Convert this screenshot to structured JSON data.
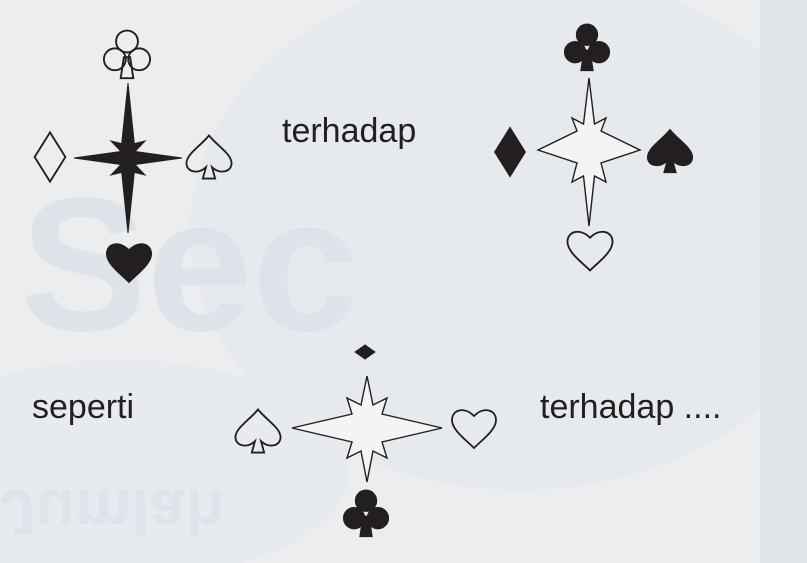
{
  "labels": {
    "first": "terhadap",
    "second": "seperti",
    "third": "terhadap ...."
  },
  "figures": [
    {
      "name": "figure-1",
      "star": "filled",
      "top": {
        "suit": "club",
        "fill": "outline"
      },
      "left": {
        "suit": "diamond",
        "fill": "outline"
      },
      "right": {
        "suit": "spade",
        "fill": "outline"
      },
      "bottom": {
        "suit": "heart",
        "fill": "filled"
      }
    },
    {
      "name": "figure-2",
      "star": "outline",
      "top": {
        "suit": "club",
        "fill": "filled"
      },
      "left": {
        "suit": "diamond",
        "fill": "filled"
      },
      "right": {
        "suit": "spade",
        "fill": "filled"
      },
      "bottom": {
        "suit": "heart",
        "fill": "outline"
      }
    },
    {
      "name": "figure-3",
      "star": "outline",
      "top": {
        "suit": "diamond",
        "fill": "filled"
      },
      "left": {
        "suit": "spade",
        "fill": "outline"
      },
      "right": {
        "suit": "heart",
        "fill": "outline"
      },
      "bottom": {
        "suit": "club",
        "fill": "filled"
      }
    }
  ],
  "colors": {
    "ink": "#231f20",
    "paper": "#ecedee",
    "watermark": "#dfe3e8"
  }
}
